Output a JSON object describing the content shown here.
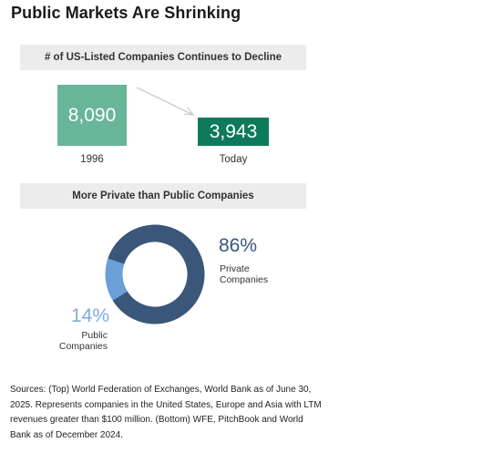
{
  "title": "Public Markets Are Shrinking",
  "section1": {
    "header": "# of US-Listed Companies Continues to Decline"
  },
  "section2": {
    "header": "More Private than Public Companies"
  },
  "colors": {
    "bar_1996": "#68b59a",
    "bar_today": "#0e7a5c",
    "donut_private": "#3a5678",
    "donut_public": "#6a9fd8",
    "private_pct_text": "#3a5678",
    "public_pct_text": "#7aaee0",
    "arrow": "#cccccc",
    "header_bg": "#ececec"
  },
  "chart_data": [
    {
      "type": "bar",
      "title": "# of US-Listed Companies Continues to Decline",
      "categories": [
        "1996",
        "Today"
      ],
      "values": [
        8090,
        3943
      ],
      "value_labels": [
        "8,090",
        "3,943"
      ]
    },
    {
      "type": "pie",
      "title": "More Private than Public Companies",
      "style": "donut",
      "slices": [
        {
          "label_line1": "Private",
          "label_line2": "Companies",
          "value": 86,
          "value_label": "86%"
        },
        {
          "label_line1": "Public",
          "label_line2": "Companies",
          "value": 14,
          "value_label": "14%"
        }
      ]
    }
  ],
  "sources": "Sources: (Top) World Federation of Exchanges, World Bank as of June 30, 2025. Represents companies in the United States, Europe and Asia with LTM revenues greater than $100 million. (Bottom) WFE, PitchBook and World Bank as of December 2024."
}
